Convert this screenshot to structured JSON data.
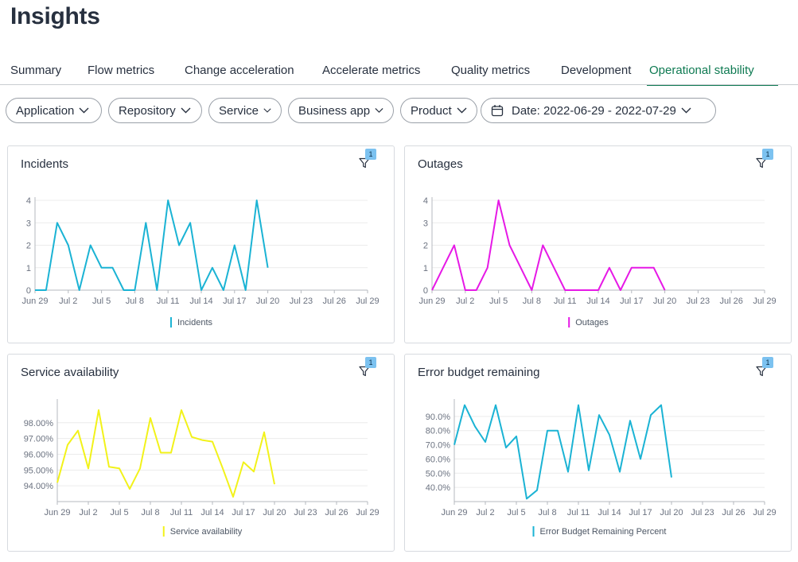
{
  "page": {
    "title": "Insights"
  },
  "tabs": [
    {
      "label": "Summary",
      "active": false
    },
    {
      "label": "Flow metrics",
      "active": false
    },
    {
      "label": "Change acceleration",
      "active": false
    },
    {
      "label": "Accelerate metrics",
      "active": false
    },
    {
      "label": "Quality metrics",
      "active": false
    },
    {
      "label": "Development",
      "active": false
    },
    {
      "label": "Operational stability",
      "active": true
    }
  ],
  "filters": {
    "application": "Application",
    "repository": "Repository",
    "service": "Service",
    "business_app": "Business app",
    "product": "Product",
    "date": "Date: 2022-06-29 - 2022-07-29"
  },
  "colors": {
    "accent": "#0e7a52",
    "incidents": "#1bb3d4",
    "outages": "#e619e6",
    "availability": "#f2f21a",
    "error_budget": "#1bb3d4"
  },
  "chart_data": [
    {
      "type": "line",
      "title": "Incidents",
      "filter_count": "1",
      "x_ticks": [
        "Jun 29",
        "Jul 2",
        "Jul 5",
        "Jul 8",
        "Jul 11",
        "Jul 14",
        "Jul 17",
        "Jul 20",
        "Jul 23",
        "Jul 26",
        "Jul 29"
      ],
      "y_ticks": [
        "0",
        "1",
        "2",
        "3",
        "4"
      ],
      "ylim": [
        0,
        4
      ],
      "x_days": 30,
      "series": [
        {
          "name": "Incidents",
          "color": "#1bb3d4",
          "values": [
            0,
            0,
            3,
            2,
            0,
            2,
            1,
            1,
            0,
            0,
            3,
            0,
            4,
            2,
            3,
            0,
            1,
            0,
            2,
            0,
            4,
            1
          ]
        }
      ]
    },
    {
      "type": "line",
      "title": "Outages",
      "filter_count": "1",
      "x_ticks": [
        "Jun 29",
        "Jul 2",
        "Jul 5",
        "Jul 8",
        "Jul 11",
        "Jul 14",
        "Jul 17",
        "Jul 20",
        "Jul 23",
        "Jul 26",
        "Jul 29"
      ],
      "y_ticks": [
        "0",
        "1",
        "2",
        "3",
        "4"
      ],
      "ylim": [
        0,
        4
      ],
      "x_days": 30,
      "series": [
        {
          "name": "Outages",
          "color": "#e619e6",
          "values": [
            0,
            1,
            2,
            0,
            0,
            1,
            4,
            2,
            1,
            0,
            2,
            1,
            0,
            0,
            0,
            0,
            1,
            0,
            1,
            1,
            1,
            0
          ]
        }
      ]
    },
    {
      "type": "line",
      "title": "Service availability",
      "filter_count": "1",
      "x_ticks": [
        "Jun 29",
        "Jul 2",
        "Jul 5",
        "Jul 8",
        "Jul 11",
        "Jul 14",
        "Jul 17",
        "Jul 20",
        "Jul 23",
        "Jul 26",
        "Jul 29"
      ],
      "y_ticks": [
        "94.00%",
        "95.00%",
        "96.00%",
        "97.00%",
        "98.00%"
      ],
      "ylim": [
        93.0,
        99.3
      ],
      "y_tick_values": [
        94,
        95,
        96,
        97,
        98
      ],
      "x_days": 30,
      "series": [
        {
          "name": "Service availability",
          "color": "#f2f21a",
          "values": [
            94.2,
            96.6,
            97.5,
            95.1,
            98.8,
            95.2,
            95.1,
            93.8,
            95.1,
            98.3,
            96.1,
            96.1,
            98.8,
            97.1,
            96.9,
            96.8,
            95.1,
            93.3,
            95.5,
            94.9,
            97.4,
            94.1
          ]
        }
      ]
    },
    {
      "type": "line",
      "title": "Error budget remaining",
      "filter_count": "1",
      "x_ticks": [
        "Jun 29",
        "Jul 2",
        "Jul 5",
        "Jul 8",
        "Jul 11",
        "Jul 14",
        "Jul 17",
        "Jul 20",
        "Jul 23",
        "Jul 26",
        "Jul 29"
      ],
      "y_ticks": [
        "40.0%",
        "50.0%",
        "60.0%",
        "70.0%",
        "80.0%",
        "90.0%"
      ],
      "ylim": [
        30,
        100
      ],
      "y_tick_values": [
        40,
        50,
        60,
        70,
        80,
        90
      ],
      "x_days": 30,
      "series": [
        {
          "name": "Error Budget Remaining Percent",
          "color": "#1bb3d4",
          "values": [
            70,
            98,
            83,
            72,
            98,
            68,
            76,
            32,
            38,
            80,
            80,
            51,
            98,
            52,
            91,
            77,
            51,
            87,
            60,
            91,
            98,
            47
          ]
        }
      ]
    }
  ]
}
